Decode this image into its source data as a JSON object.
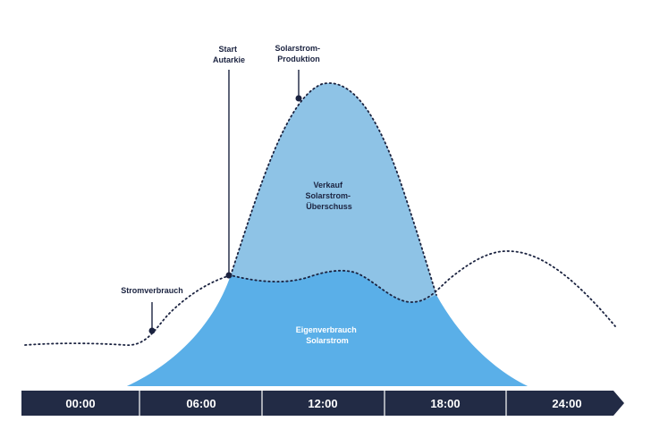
{
  "colors": {
    "navy": "#222b45",
    "surplus_fill": "#8ec3e6",
    "selfuse_fill": "#5aafe8",
    "curve": "#1b2340"
  },
  "labels": {
    "start_autarkie": [
      "Start",
      "Autarkie"
    ],
    "solar_production": [
      "Solarstrom-",
      "Produktion"
    ],
    "consumption": "Stromverbrauch",
    "surplus": [
      "Verkauf",
      "Solarstrom-",
      "Überschuss"
    ],
    "self_use": [
      "Eigenverbrauch",
      "Solarstrom"
    ]
  },
  "timeline": {
    "ticks": [
      "00:00",
      "06:00",
      "12:00",
      "18:00",
      "24:00"
    ]
  }
}
